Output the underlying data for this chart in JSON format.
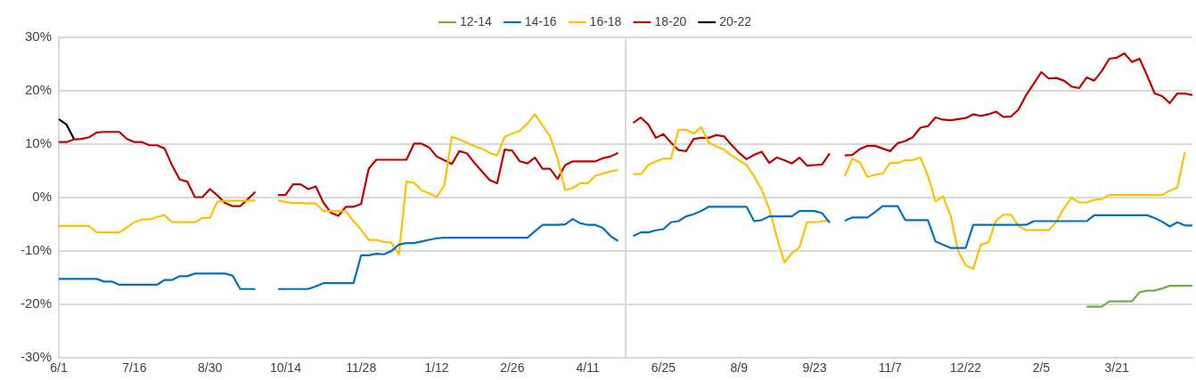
{
  "chart_data": {
    "type": "line",
    "ylim": [
      -30,
      30
    ],
    "categories": [
      "6/1",
      null,
      null,
      null,
      null,
      null,
      null,
      null,
      null,
      null,
      "7/16",
      null,
      null,
      null,
      null,
      null,
      null,
      null,
      null,
      null,
      "8/30",
      null,
      null,
      null,
      null,
      null,
      null,
      null,
      null,
      null,
      "10/14",
      null,
      null,
      null,
      null,
      null,
      null,
      null,
      null,
      null,
      "11/28",
      null,
      null,
      null,
      null,
      null,
      null,
      null,
      null,
      null,
      "1/12",
      null,
      null,
      null,
      null,
      null,
      null,
      null,
      null,
      null,
      "2/26",
      null,
      null,
      null,
      null,
      null,
      null,
      null,
      null,
      null,
      "4/11",
      null,
      null,
      null,
      null,
      null,
      null,
      null,
      null,
      null,
      "6/25",
      null,
      null,
      null,
      null,
      null,
      null,
      null,
      null,
      null,
      "8/9",
      null,
      null,
      null,
      null,
      null,
      null,
      null,
      null,
      null,
      "9/23",
      null,
      null,
      null,
      null,
      null,
      null,
      null,
      null,
      null,
      "11/7",
      null,
      null,
      null,
      null,
      null,
      null,
      null,
      null,
      null,
      "12/22",
      null,
      null,
      null,
      null,
      null,
      null,
      null,
      null,
      null,
      "2/5",
      null,
      null,
      null,
      null,
      null,
      null,
      null,
      null,
      null,
      "3/21",
      null,
      null,
      null,
      null,
      null,
      null,
      null,
      null,
      null,
      null
    ],
    "yticks": [
      {
        "value": -30,
        "label": "-30%"
      },
      {
        "value": -20,
        "label": "-20%"
      },
      {
        "value": -10,
        "label": "-10%"
      },
      {
        "value": 0,
        "label": "0%"
      },
      {
        "value": 10,
        "label": "10%"
      },
      {
        "value": 20,
        "label": "20%"
      },
      {
        "value": 30,
        "label": "30%"
      }
    ],
    "grid": "y",
    "legend": "top",
    "series": [
      {
        "name": "12-14",
        "color": "#70ad47",
        "values": [
          null,
          null,
          null,
          null,
          null,
          null,
          null,
          null,
          null,
          null,
          null,
          null,
          null,
          null,
          null,
          null,
          null,
          null,
          null,
          null,
          null,
          null,
          null,
          null,
          null,
          null,
          null,
          null,
          null,
          null,
          null,
          null,
          null,
          null,
          null,
          null,
          null,
          null,
          null,
          null,
          null,
          null,
          null,
          null,
          null,
          null,
          null,
          null,
          null,
          null,
          null,
          null,
          null,
          null,
          null,
          null,
          null,
          null,
          null,
          null,
          null,
          null,
          null,
          null,
          null,
          null,
          null,
          null,
          null,
          null,
          null,
          null,
          null,
          null,
          null,
          null,
          null,
          null,
          null,
          null,
          null,
          null,
          null,
          null,
          null,
          null,
          null,
          null,
          null,
          null,
          null,
          null,
          null,
          null,
          null,
          null,
          null,
          null,
          null,
          null,
          null,
          null,
          null,
          null,
          null,
          null,
          null,
          null,
          null,
          null,
          null,
          null,
          null,
          null,
          null,
          null,
          null,
          null,
          null,
          null,
          null,
          null,
          null,
          null,
          null,
          null,
          null,
          null,
          null,
          null,
          null,
          null,
          null,
          null,
          null,
          null,
          -20.4,
          -20.4,
          -20.4,
          -19.4,
          -19.4,
          -19.4,
          -19.4,
          -17.7,
          -17.4,
          -17.4,
          -17,
          -16.5,
          -16.5,
          -16.5,
          -16.5
        ]
      },
      {
        "name": "14-16",
        "color": "#0070c0",
        "values": [
          -15.2,
          -15.2,
          -15.2,
          -15.2,
          -15.2,
          -15.2,
          -15.7,
          -15.7,
          -16.3,
          -16.3,
          -16.3,
          -16.3,
          -16.3,
          -16.3,
          -15.4,
          -15.4,
          -14.7,
          -14.7,
          -14.2,
          -14.2,
          -14.2,
          -14.2,
          -14.2,
          -14.6,
          -17.1,
          -17.1,
          -17.1,
          null,
          null,
          -17.1,
          -17.1,
          -17.1,
          -17.1,
          -17.1,
          -16.6,
          -16,
          -16,
          -16,
          -16,
          -16,
          -10.8,
          -10.8,
          -10.5,
          -10.6,
          -10,
          -8.8,
          -8.5,
          -8.5,
          -8.2,
          -7.9,
          -7.6,
          -7.5,
          -7.5,
          -7.5,
          -7.5,
          -7.5,
          -7.5,
          -7.5,
          -7.5,
          -7.5,
          -7.5,
          -7.5,
          -7.5,
          -6.3,
          -5.1,
          -5.1,
          -5.1,
          -5,
          -4,
          -4.8,
          -5.1,
          -5.1,
          -5.7,
          -7.2,
          -8.1,
          null,
          -7.2,
          -6.5,
          -6.5,
          -6.1,
          -5.9,
          -4.6,
          -4.4,
          -3.5,
          -3.1,
          -2.5,
          -1.7,
          -1.7,
          -1.7,
          -1.7,
          -1.7,
          -1.7,
          -4.4,
          -4.2,
          -3.5,
          -3.5,
          -3.5,
          -3.5,
          -2.5,
          -2.5,
          -2.5,
          -2.9,
          -4.7,
          null,
          -4.3,
          -3.7,
          -3.7,
          -3.7,
          -2.7,
          -1.6,
          -1.6,
          -1.6,
          -4.2,
          -4.2,
          -4.2,
          -4.2,
          -8.2,
          -8.8,
          -9.4,
          -9.4,
          -9.4,
          -5.1,
          -5.1,
          -5.1,
          -5.1,
          -5.1,
          -5.1,
          -5.1,
          -5.1,
          -4.4,
          -4.4,
          -4.4,
          -4.4,
          -4.4,
          -4.4,
          -4.4,
          -4.4,
          -3.3,
          -3.3,
          -3.3,
          -3.3,
          -3.3,
          -3.3,
          -3.3,
          -3.3,
          -3.8,
          -4.5,
          -5.4,
          -4.6,
          -5.2,
          -5.2
        ]
      },
      {
        "name": "16-18",
        "color": "#ffc000",
        "values": [
          -5.3,
          -5.3,
          -5.3,
          -5.3,
          -5.3,
          -6.5,
          -6.5,
          -6.5,
          -6.5,
          -5.6,
          -4.6,
          -4.1,
          -4.1,
          -3.6,
          -3.3,
          -4.6,
          -4.6,
          -4.6,
          -4.6,
          -3.8,
          -3.8,
          -0.7,
          -0.6,
          -0.6,
          -0.6,
          -0.6,
          -0.5,
          null,
          null,
          -0.5,
          -0.8,
          -1,
          -1,
          -1.1,
          -1.1,
          -2.5,
          -2.5,
          -2.5,
          -2.6,
          -4.4,
          -6,
          -7.9,
          -7.9,
          -8.3,
          -8.4,
          -10.6,
          3,
          2.8,
          1.4,
          0.8,
          0.1,
          2.3,
          11.4,
          10.9,
          10.3,
          9.6,
          9.2,
          8.4,
          7.9,
          11.4,
          12,
          12.5,
          13.9,
          15.6,
          13.5,
          11.5,
          7.3,
          1.4,
          1.8,
          2.7,
          2.7,
          4.1,
          4.5,
          4.9,
          5.2,
          null,
          4.4,
          4.4,
          6.1,
          6.8,
          7.3,
          7.3,
          12.7,
          12.7,
          12,
          13.2,
          10.3,
          9.6,
          9,
          7.9,
          7,
          6.1,
          4,
          1.5,
          -2.1,
          -7.3,
          -12.1,
          -10.4,
          -9.3,
          -4.6,
          -4.6,
          -4.4,
          -4.3,
          null,
          4,
          7.3,
          6.6,
          3.9,
          4.3,
          4.5,
          6.5,
          6.5,
          7,
          7,
          7.5,
          4.1,
          -0.7,
          0.3,
          -3.4,
          -10,
          -12.7,
          -13.3,
          -8.8,
          -8.4,
          -4.3,
          -3.2,
          -3.2,
          -5.3,
          -6.1,
          -6.1,
          -6.1,
          -6.1,
          -4.5,
          -2,
          0,
          -0.9,
          -0.9,
          -0.4,
          -0.3,
          0.5,
          0.5,
          0.5,
          0.5,
          0.5,
          0.5,
          0.5,
          0.5,
          1.3,
          1.9,
          8.5,
          null
        ]
      },
      {
        "name": "18-20",
        "color": "#c00000",
        "values": [
          10.4,
          10.4,
          10.9,
          11,
          11.3,
          12.2,
          12.3,
          12.3,
          12.3,
          11,
          10.4,
          10.4,
          9.8,
          9.8,
          9.2,
          6,
          3.4,
          3,
          0.1,
          0.1,
          1.6,
          0.4,
          -1,
          -1.6,
          -1.6,
          -0.3,
          1.1,
          null,
          null,
          0.5,
          0.5,
          2.5,
          2.5,
          1.6,
          2.1,
          -0.9,
          -2.8,
          -3.4,
          -1.7,
          -1.7,
          -1.2,
          5.4,
          7.1,
          7.1,
          7.1,
          7.1,
          7.1,
          10.1,
          10.1,
          9.4,
          7.7,
          7,
          6.3,
          8.7,
          8.3,
          6.5,
          4.9,
          3.3,
          2.7,
          9,
          8.8,
          6.8,
          6.4,
          7.5,
          5.4,
          5.4,
          3.5,
          6.1,
          6.8,
          6.8,
          6.8,
          6.8,
          7.4,
          7.7,
          8.4,
          null,
          14,
          15,
          13.7,
          11.2,
          11.9,
          10.3,
          8.9,
          8.7,
          11,
          11.2,
          11.2,
          11.7,
          11.5,
          9.9,
          8.4,
          7.2,
          8,
          8.6,
          6.5,
          7.5,
          7,
          6.4,
          7.5,
          6,
          6.1,
          6.2,
          8.3,
          null,
          7.9,
          8,
          9.1,
          9.7,
          9.7,
          9.2,
          8.7,
          10.2,
          10.6,
          11.3,
          13.1,
          13.4,
          15,
          14.6,
          14.5,
          14.7,
          14.9,
          15.6,
          15.3,
          15.6,
          16.1,
          15.1,
          15.2,
          16.5,
          19.2,
          21.3,
          23.5,
          22.3,
          22.4,
          21.9,
          20.8,
          20.5,
          22.5,
          21.9,
          23.7,
          26,
          26.2,
          27,
          25.4,
          26,
          22.9,
          19.5,
          19,
          17.7,
          19.5,
          19.5,
          19.2
        ]
      },
      {
        "name": "20-22",
        "color": "#000000",
        "values": [
          14.7,
          13.7,
          11,
          null,
          null,
          null,
          null,
          null,
          null,
          null,
          null,
          null,
          null,
          null,
          null,
          null,
          null,
          null,
          null,
          null,
          null,
          null,
          null,
          null,
          null,
          null,
          null,
          null,
          null,
          null,
          null,
          null,
          null,
          null,
          null,
          null,
          null,
          null,
          null,
          null,
          null,
          null,
          null,
          null,
          null,
          null,
          null,
          null,
          null,
          null,
          null,
          null,
          null,
          null,
          null,
          null,
          null,
          null,
          null,
          null,
          null,
          null,
          null,
          null,
          null,
          null,
          null,
          null,
          null,
          null,
          null,
          null,
          null,
          null,
          null,
          null,
          null,
          null,
          null,
          null,
          null,
          null,
          null,
          null,
          null,
          null,
          null,
          null,
          null,
          null,
          null,
          null,
          null,
          null,
          null,
          null,
          null,
          null,
          null,
          null,
          null,
          null,
          null,
          null,
          null,
          null,
          null,
          null,
          null,
          null,
          null,
          null,
          null,
          null,
          null,
          null,
          null,
          null,
          null,
          null,
          null,
          null,
          null,
          null,
          null,
          null,
          null,
          null,
          null,
          null,
          null,
          null,
          null,
          null,
          null,
          null,
          null,
          null,
          null,
          null,
          null,
          null,
          null,
          null,
          null,
          null,
          null,
          null,
          null,
          null,
          null
        ]
      }
    ]
  }
}
